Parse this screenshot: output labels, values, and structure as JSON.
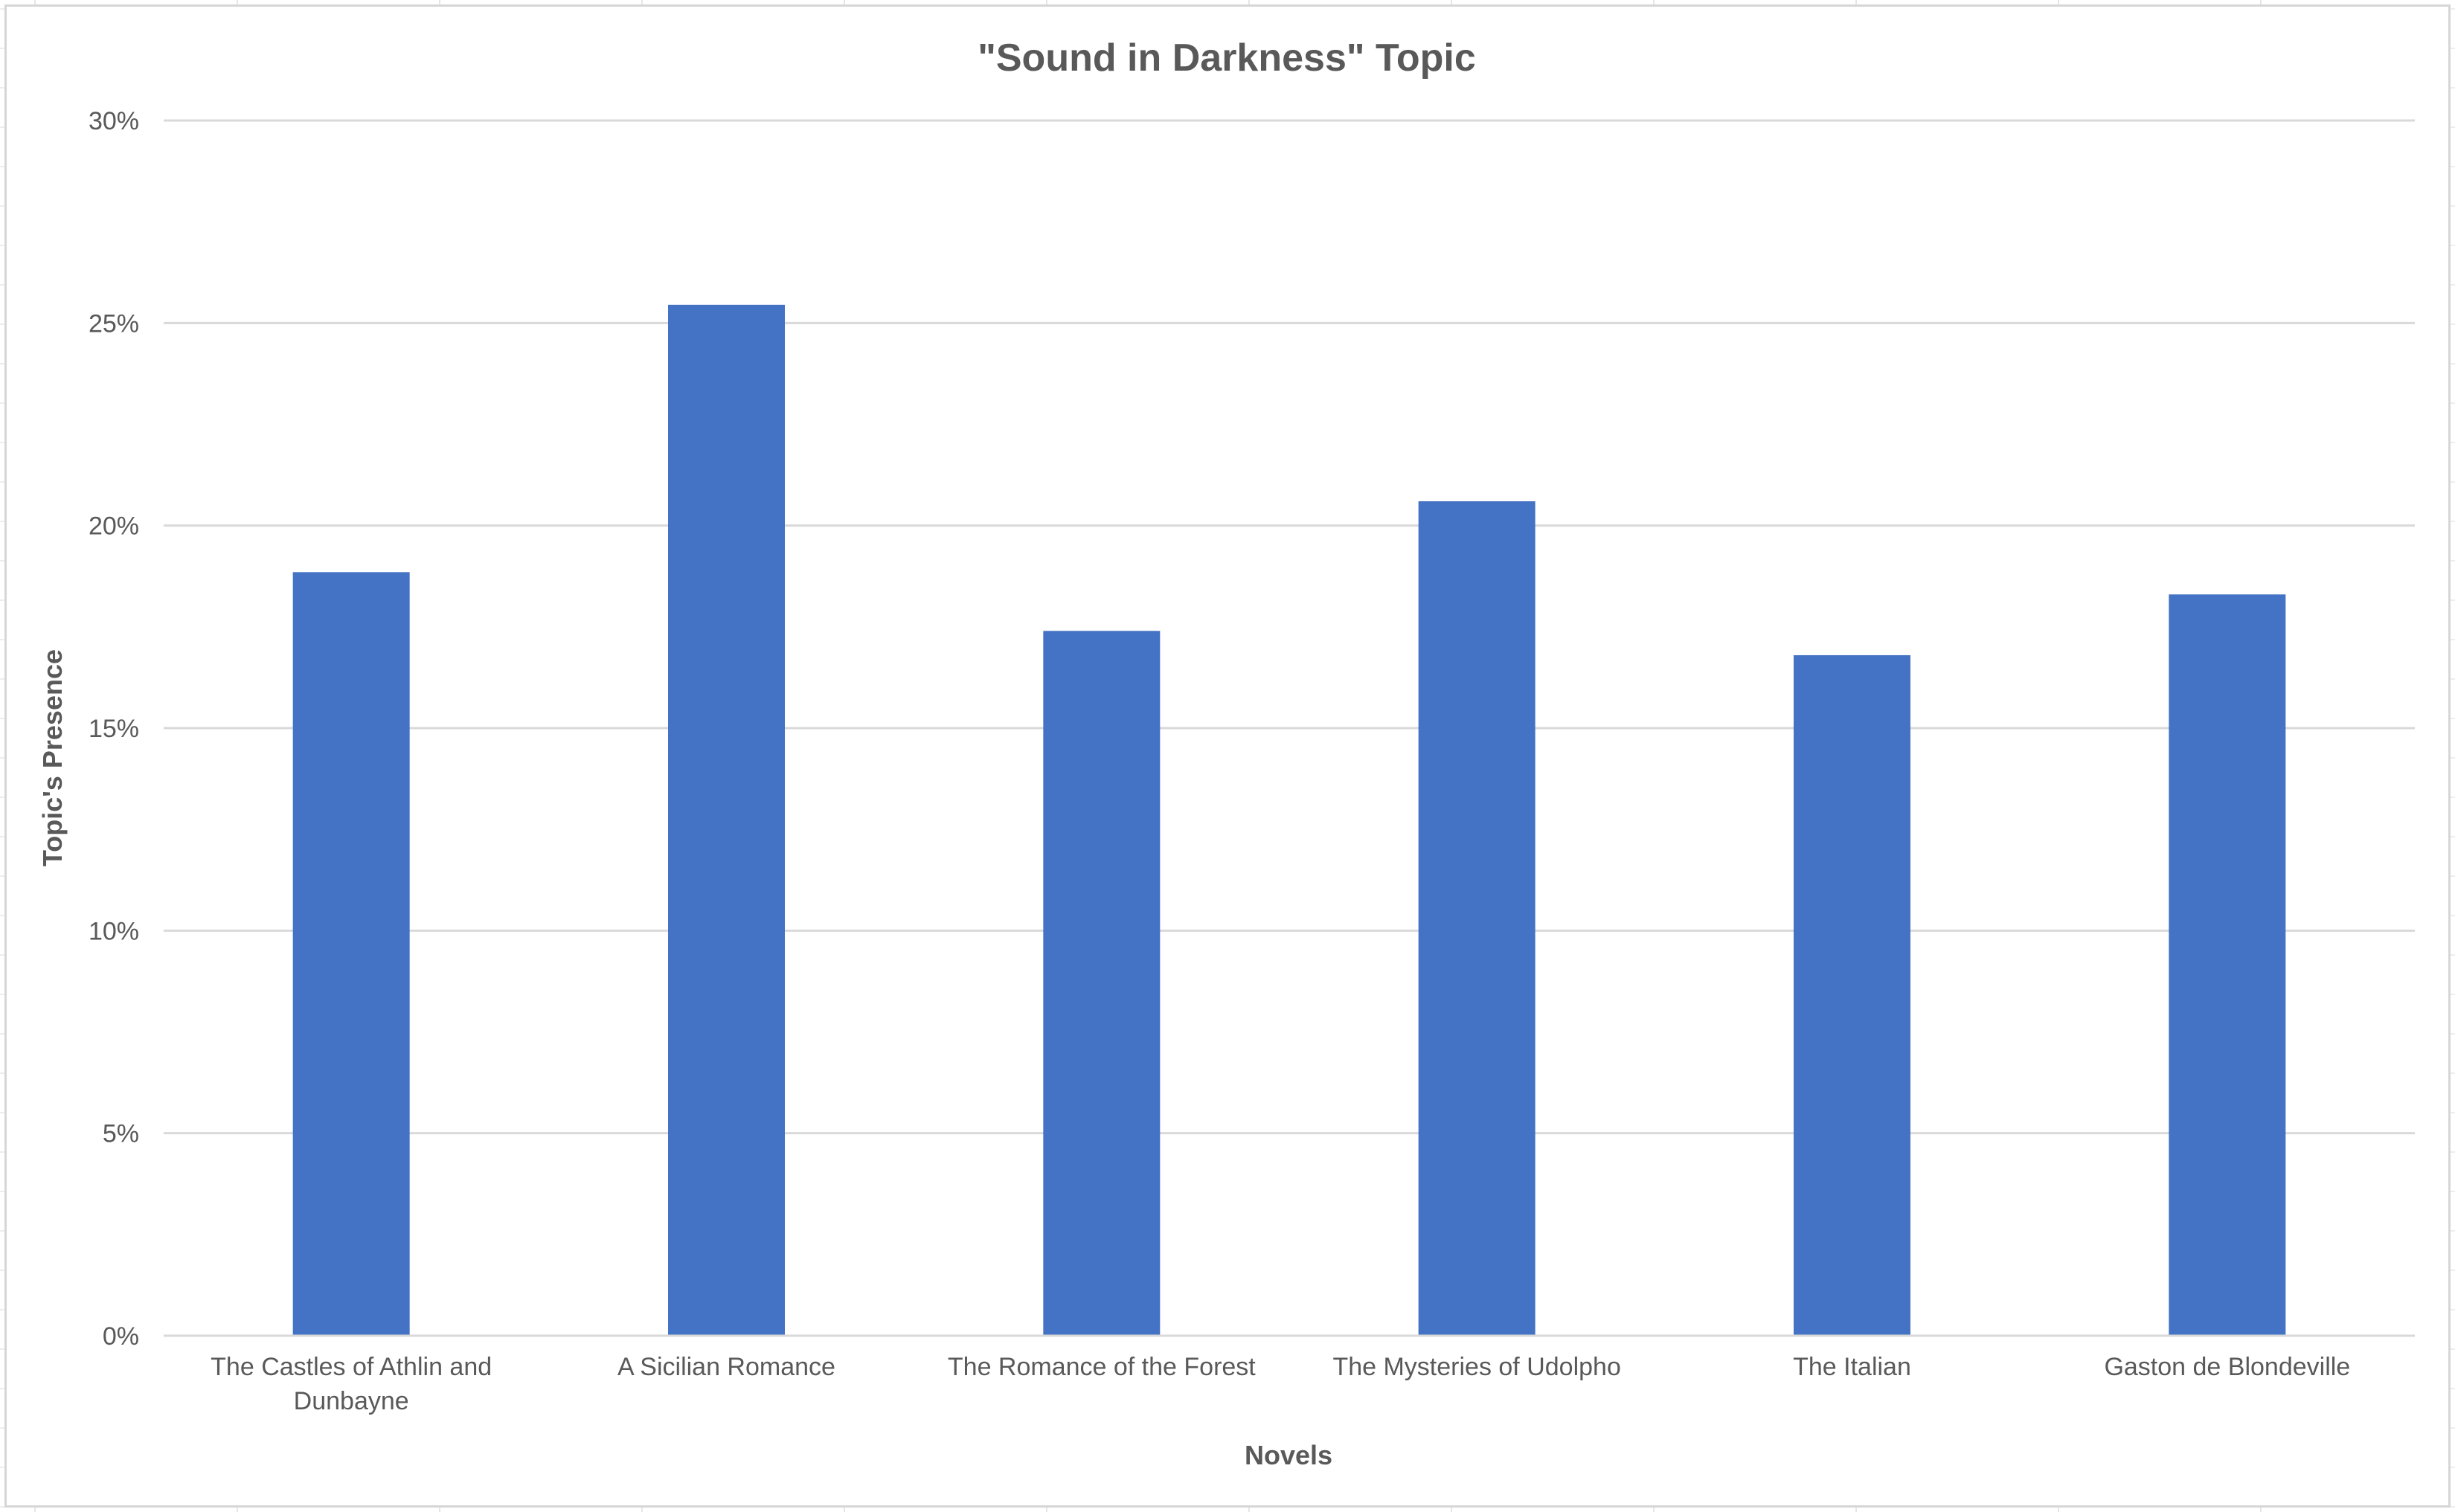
{
  "chart_data": {
    "type": "bar",
    "title": "\"Sound in Darkness\" Topic",
    "xlabel": "Novels",
    "ylabel": "Topic's Presence",
    "categories": [
      "The Castles of Athlin and Dunbayne",
      "A Sicilian Romance",
      "The Romance of the Forest",
      "The Mysteries of Udolpho",
      "The Italian",
      "Gaston de Blondeville"
    ],
    "category_lines": [
      [
        "The Castles of Athlin and",
        "Dunbayne"
      ],
      [
        "A Sicilian Romance"
      ],
      [
        "The Romance of the Forest"
      ],
      [
        "The Mysteries of Udolpho"
      ],
      [
        "The Italian"
      ],
      [
        "Gaston de Blondeville"
      ]
    ],
    "values": [
      18.85,
      25.45,
      17.4,
      20.6,
      16.8,
      18.3
    ],
    "value_unit": "%",
    "ylim": [
      0,
      30
    ],
    "yticks": [
      0,
      5,
      10,
      15,
      20,
      25,
      30
    ],
    "ytick_labels": [
      "0%",
      "5%",
      "10%",
      "15%",
      "20%",
      "25%",
      "30%"
    ],
    "grid": true,
    "legend": "none",
    "bar_color": "#4472C4"
  }
}
